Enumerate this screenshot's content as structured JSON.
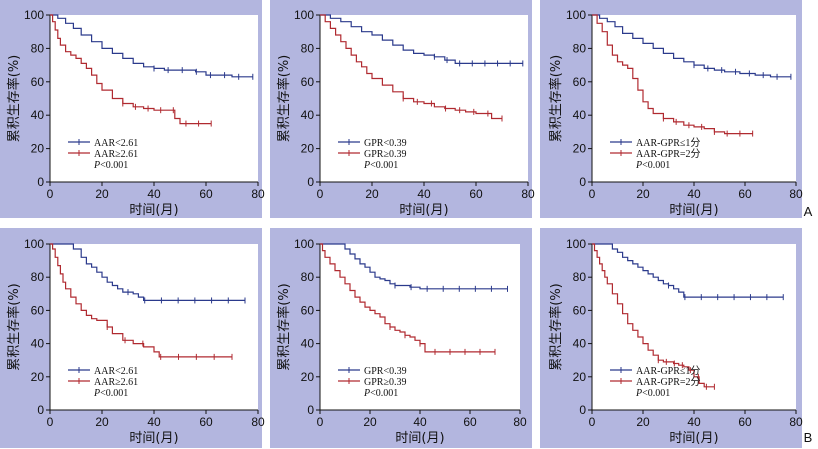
{
  "figure": {
    "row_labels": [
      "A",
      "B"
    ]
  },
  "chart_data": [
    {
      "type": "line",
      "panel": "A-1",
      "xlabel": "时间(月)",
      "ylabel": "累积生存率(%)",
      "xlim": [
        0,
        80
      ],
      "ylim": [
        0,
        100
      ],
      "xticks": [
        0,
        20,
        40,
        60,
        80
      ],
      "yticks": [
        0,
        20,
        40,
        60,
        80,
        100
      ],
      "legend_position": "bottom-left",
      "p_label": "P<0.001",
      "series": [
        {
          "name": "AAR<2.61",
          "color": "#2b3a8c",
          "x": [
            0,
            3,
            6,
            9,
            12,
            16,
            20,
            24,
            28,
            32,
            36,
            40,
            44,
            50,
            56,
            60,
            65,
            70,
            78
          ],
          "y": [
            100,
            98,
            95,
            92,
            88,
            84,
            80,
            77,
            74,
            71,
            69,
            68,
            67,
            67,
            66,
            64,
            64,
            63,
            63
          ]
        },
        {
          "name": "AAR≥2.61",
          "color": "#b02a30",
          "x": [
            0,
            1,
            2,
            3,
            4,
            6,
            8,
            10,
            12,
            14,
            16,
            18,
            20,
            24,
            28,
            32,
            36,
            40,
            44,
            48,
            50,
            55,
            60,
            62
          ],
          "y": [
            100,
            96,
            91,
            86,
            82,
            78,
            76,
            74,
            71,
            68,
            64,
            59,
            55,
            50,
            47,
            45,
            44,
            43,
            43,
            38,
            35,
            35,
            35,
            35
          ]
        }
      ]
    },
    {
      "type": "line",
      "panel": "A-2",
      "xlabel": "时间(月)",
      "ylabel": "累积生存率(%)",
      "xlim": [
        0,
        80
      ],
      "ylim": [
        0,
        100
      ],
      "xticks": [
        0,
        20,
        40,
        60,
        80
      ],
      "yticks": [
        0,
        20,
        40,
        60,
        80,
        100
      ],
      "legend_position": "bottom-left",
      "p_label": "P<0.001",
      "series": [
        {
          "name": "GPR<0.39",
          "color": "#2b3a8c",
          "x": [
            0,
            4,
            8,
            12,
            16,
            20,
            24,
            28,
            32,
            36,
            40,
            44,
            48,
            52,
            56,
            60,
            66,
            72,
            78
          ],
          "y": [
            100,
            98,
            96,
            93,
            90,
            88,
            85,
            82,
            79,
            77,
            76,
            75,
            73,
            71,
            71,
            71,
            71,
            71,
            71
          ]
        },
        {
          "name": "GPR≥0.39",
          "color": "#b02a30",
          "x": [
            0,
            2,
            4,
            6,
            8,
            10,
            12,
            14,
            16,
            18,
            20,
            24,
            28,
            32,
            36,
            40,
            44,
            48,
            52,
            56,
            60,
            66,
            70
          ],
          "y": [
            100,
            96,
            92,
            88,
            84,
            80,
            76,
            72,
            69,
            65,
            62,
            58,
            54,
            50,
            48,
            47,
            45,
            44,
            43,
            42,
            41,
            38,
            38
          ]
        }
      ]
    },
    {
      "type": "line",
      "panel": "A-3",
      "xlabel": "时间(月)",
      "ylabel": "累积生存率(%)",
      "xlim": [
        0,
        80
      ],
      "ylim": [
        0,
        100
      ],
      "xticks": [
        0,
        20,
        40,
        60,
        80
      ],
      "yticks": [
        0,
        20,
        40,
        60,
        80,
        100
      ],
      "legend_position": "bottom-left",
      "p_label": "P<0.001",
      "series": [
        {
          "name": "AAR-GPR≤1分",
          "color": "#2b3a8c",
          "x": [
            0,
            3,
            6,
            9,
            12,
            16,
            20,
            24,
            28,
            32,
            36,
            40,
            44,
            48,
            52,
            58,
            64,
            70,
            78
          ],
          "y": [
            100,
            98,
            96,
            93,
            89,
            86,
            83,
            80,
            77,
            74,
            72,
            70,
            68,
            67,
            66,
            65,
            64,
            63,
            63
          ]
        },
        {
          "name": "AAR-GPR=2分",
          "color": "#b02a30",
          "x": [
            0,
            2,
            4,
            6,
            8,
            10,
            12,
            14,
            16,
            18,
            20,
            22,
            24,
            28,
            32,
            36,
            40,
            44,
            48,
            52,
            56,
            60,
            63
          ],
          "y": [
            100,
            95,
            90,
            82,
            76,
            72,
            70,
            68,
            62,
            55,
            48,
            44,
            41,
            38,
            36,
            34,
            33,
            32,
            30,
            29,
            29,
            29,
            29
          ]
        }
      ]
    },
    {
      "type": "line",
      "panel": "B-1",
      "xlabel": "时间(月)",
      "ylabel": "累积生存率(%)",
      "xlim": [
        0,
        80
      ],
      "ylim": [
        0,
        100
      ],
      "xticks": [
        0,
        20,
        40,
        60,
        80
      ],
      "yticks": [
        0,
        20,
        40,
        60,
        80,
        100
      ],
      "legend_position": "bottom-left",
      "p_label": "P<0.001",
      "series": [
        {
          "name": "AAR<2.61",
          "color": "#2b3a8c",
          "x": [
            0,
            6,
            9,
            12,
            14,
            16,
            18,
            20,
            22,
            24,
            26,
            28,
            30,
            32,
            34,
            36,
            40,
            50,
            60,
            70,
            75
          ],
          "y": [
            100,
            100,
            97,
            92,
            88,
            86,
            83,
            80,
            77,
            75,
            73,
            71,
            71,
            70,
            68,
            66,
            66,
            66,
            66,
            66,
            66
          ]
        },
        {
          "name": "AAR≥2.61",
          "color": "#b02a30",
          "x": [
            0,
            1,
            2,
            3,
            4,
            5,
            6,
            8,
            10,
            12,
            14,
            16,
            18,
            20,
            22,
            24,
            28,
            32,
            36,
            40,
            42,
            50,
            60,
            70
          ],
          "y": [
            100,
            97,
            92,
            87,
            82,
            77,
            73,
            68,
            64,
            60,
            57,
            55,
            54,
            54,
            50,
            46,
            42,
            40,
            38,
            35,
            32,
            32,
            32,
            32
          ]
        }
      ]
    },
    {
      "type": "line",
      "panel": "B-2",
      "xlabel": "时间(月)",
      "ylabel": "累积生存率(%)",
      "xlim": [
        0,
        80
      ],
      "ylim": [
        0,
        100
      ],
      "xticks": [
        0,
        20,
        40,
        60,
        80
      ],
      "yticks": [
        0,
        20,
        40,
        60,
        80,
        100
      ],
      "legend_position": "bottom-left",
      "p_label": "P<0.001",
      "series": [
        {
          "name": "GPR<0.39",
          "color": "#2b3a8c",
          "x": [
            0,
            8,
            10,
            12,
            14,
            16,
            18,
            20,
            22,
            24,
            26,
            28,
            30,
            32,
            36,
            40,
            50,
            60,
            70,
            75
          ],
          "y": [
            100,
            100,
            97,
            94,
            91,
            88,
            86,
            83,
            80,
            79,
            78,
            76,
            75,
            75,
            74,
            73,
            73,
            73,
            73,
            73
          ]
        },
        {
          "name": "GPR≥0.39",
          "color": "#b02a30",
          "x": [
            0,
            1,
            2,
            4,
            6,
            8,
            10,
            12,
            14,
            16,
            18,
            20,
            22,
            24,
            26,
            28,
            30,
            32,
            34,
            36,
            38,
            40,
            42,
            50,
            60,
            70
          ],
          "y": [
            100,
            96,
            92,
            88,
            84,
            80,
            76,
            72,
            68,
            65,
            62,
            60,
            58,
            56,
            52,
            50,
            48,
            47,
            45,
            44,
            42,
            40,
            35,
            35,
            35,
            35
          ]
        }
      ]
    },
    {
      "type": "line",
      "panel": "B-3",
      "xlabel": "时间(月)",
      "ylabel": "累积生存率(%)",
      "xlim": [
        0,
        80
      ],
      "ylim": [
        0,
        100
      ],
      "xticks": [
        0,
        20,
        40,
        60,
        80
      ],
      "yticks": [
        0,
        20,
        40,
        60,
        80,
        100
      ],
      "legend_position": "bottom-left",
      "p_label": "P<0.001",
      "series": [
        {
          "name": "AAR-GPR≤1分",
          "color": "#2b3a8c",
          "x": [
            0,
            6,
            8,
            10,
            12,
            14,
            16,
            18,
            20,
            22,
            24,
            26,
            28,
            30,
            32,
            34,
            36,
            40,
            50,
            60,
            70,
            75
          ],
          "y": [
            100,
            100,
            97,
            95,
            92,
            90,
            88,
            86,
            84,
            82,
            80,
            78,
            76,
            75,
            73,
            71,
            68,
            68,
            68,
            68,
            68,
            68
          ]
        },
        {
          "name": "AAR-GPR=2分",
          "color": "#b02a30",
          "x": [
            0,
            1,
            2,
            3,
            4,
            5,
            6,
            8,
            10,
            12,
            14,
            16,
            18,
            20,
            22,
            24,
            26,
            28,
            30,
            32,
            34,
            36,
            38,
            40,
            42,
            44,
            46,
            48
          ],
          "y": [
            100,
            96,
            92,
            88,
            84,
            80,
            76,
            70,
            64,
            58,
            52,
            48,
            44,
            40,
            36,
            33,
            30,
            29,
            29,
            28,
            27,
            26,
            24,
            20,
            16,
            14,
            14,
            14
          ]
        }
      ]
    }
  ]
}
